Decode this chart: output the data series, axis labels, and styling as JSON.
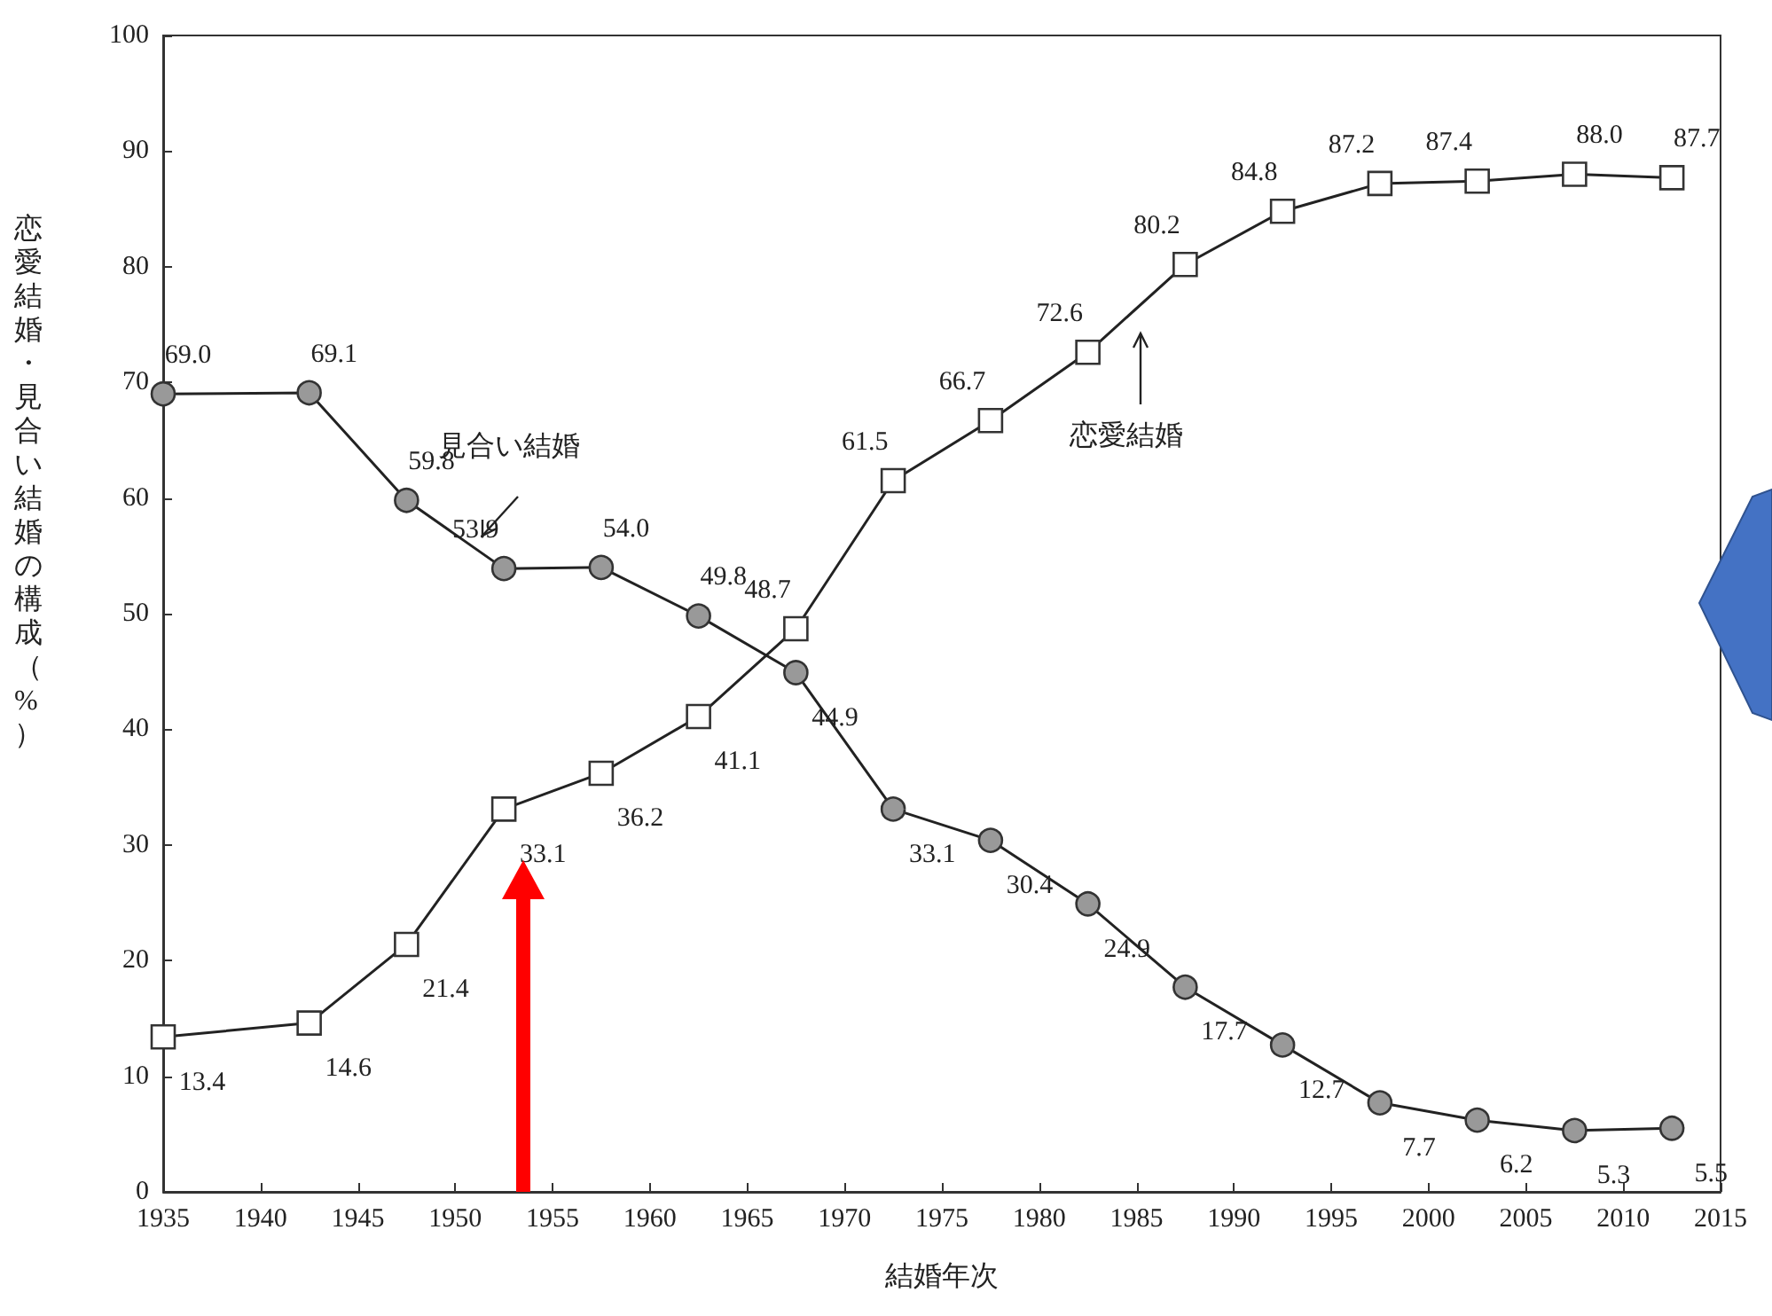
{
  "chart_data": {
    "type": "line",
    "xlabel": "結婚年次",
    "ylabel": "恋愛結婚・見合い結婚の構成（%）",
    "xlim": [
      1935,
      2015
    ],
    "xticks": [
      1935,
      1940,
      1945,
      1950,
      1955,
      1960,
      1965,
      1970,
      1975,
      1980,
      1985,
      1990,
      1995,
      2000,
      2005,
      2010,
      2015
    ],
    "ylim": [
      0,
      100
    ],
    "yticks": [
      0,
      10,
      20,
      30,
      40,
      50,
      60,
      70,
      80,
      90,
      100
    ],
    "grid": false,
    "series": [
      {
        "color": "#999999",
        "marker": "circle",
        "x": [
          1935,
          1942.5,
          1947.5,
          1952.5,
          1957.5,
          1962.5,
          1967.5,
          1972.5,
          1977.5,
          1982.5,
          1987.5,
          1992.5,
          1997.5,
          2002.5,
          2007.5,
          2012.5
        ],
        "values": [
          69.0,
          69.1,
          59.8,
          53.9,
          54.0,
          49.8,
          44.9,
          33.1,
          30.4,
          24.9,
          17.7,
          12.7,
          7.7,
          6.2,
          5.3,
          5.5
        ],
        "value_labels": [
          "69.0",
          "69.1",
          "59.8",
          "53.9",
          "54.0",
          "49.8",
          "44.9",
          "33.1",
          "30.4",
          "24.9",
          "17.7",
          "12.7",
          "7.7",
          "6.2",
          "5.3",
          "5.5"
        ]
      },
      {
        "color": "#ffffff",
        "marker": "square",
        "x": [
          1935,
          1942.5,
          1947.5,
          1952.5,
          1957.5,
          1962.5,
          1967.5,
          1972.5,
          1977.5,
          1982.5,
          1987.5,
          1992.5,
          1997.5,
          2002.5,
          2007.5,
          2012.5
        ],
        "values": [
          13.4,
          14.6,
          21.4,
          33.1,
          36.2,
          41.1,
          48.7,
          61.5,
          66.7,
          72.6,
          80.2,
          84.8,
          87.2,
          87.4,
          88.0,
          87.7
        ],
        "value_labels": [
          "13.4",
          "14.6",
          "21.4",
          "33.1",
          "36.2",
          "41.1",
          "48.7",
          "61.5",
          "66.7",
          "72.6",
          "80.2",
          "84.8",
          "87.2",
          "87.4",
          "88.0",
          "87.7"
        ]
      }
    ],
    "annotations": [
      "見合い結婚",
      "恋愛結婚"
    ]
  }
}
